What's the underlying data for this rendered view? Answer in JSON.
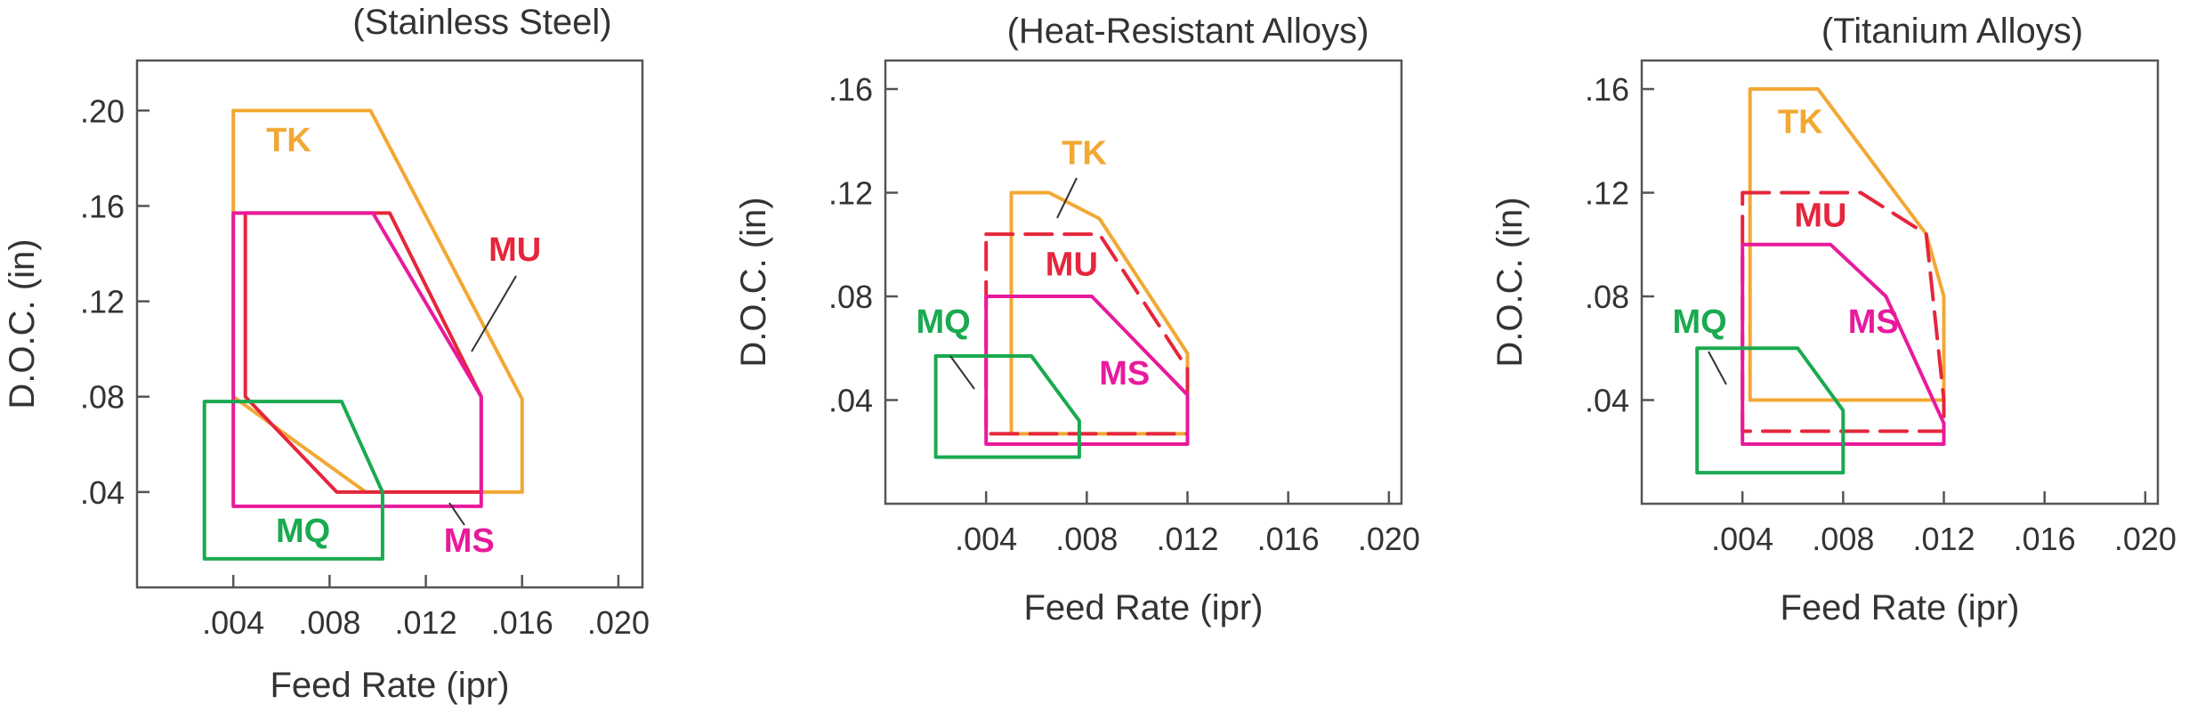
{
  "chart_data": [
    {
      "type": "area",
      "title": "(Stainless Steel)",
      "xlabel": "Feed Rate (ipr)",
      "ylabel": "D.O.C. (in)",
      "xlim": [
        0,
        0.021
      ],
      "ylim": [
        0,
        0.221
      ],
      "x_ticks": [
        0.004,
        0.008,
        0.012,
        0.016,
        0.02
      ],
      "x_tick_labels": [
        ".004",
        ".008",
        ".012",
        ".016",
        ".020"
      ],
      "y_ticks": [
        0.04,
        0.08,
        0.12,
        0.16,
        0.2
      ],
      "y_tick_labels": [
        ".04",
        ".08",
        ".12",
        ".16",
        ".20"
      ],
      "series": [
        {
          "name": "TK",
          "color": "#f2a833",
          "dash": "solid",
          "points": [
            [
              0.004,
              0.2
            ],
            [
              0.0097,
              0.2
            ],
            [
              0.016,
              0.079
            ],
            [
              0.016,
              0.04
            ],
            [
              0.0095,
              0.04
            ],
            [
              0.004,
              0.08
            ]
          ]
        },
        {
          "name": "MU",
          "color": "#e5263b",
          "dash": "solid",
          "points": [
            [
              0.0045,
              0.157
            ],
            [
              0.0105,
              0.157
            ],
            [
              0.0143,
              0.08
            ],
            [
              0.0143,
              0.04
            ],
            [
              0.0083,
              0.04
            ],
            [
              0.0045,
              0.08
            ]
          ]
        },
        {
          "name": "MS",
          "color": "#e81a9c",
          "dash": "solid",
          "points": [
            [
              0.004,
              0.157
            ],
            [
              0.0098,
              0.157
            ],
            [
              0.0143,
              0.08
            ],
            [
              0.0143,
              0.034
            ],
            [
              0.004,
              0.034
            ]
          ]
        },
        {
          "name": "MQ",
          "color": "#1aaa4f",
          "dash": "solid",
          "points": [
            [
              0.0028,
              0.078
            ],
            [
              0.0085,
              0.078
            ],
            [
              0.0102,
              0.04
            ],
            [
              0.0102,
              0.012
            ],
            [
              0.0028,
              0.012
            ]
          ]
        }
      ],
      "labels": [
        {
          "text": "TK",
          "x": 0.0063,
          "y": 0.183,
          "color": "#f2a833"
        },
        {
          "text": "MU",
          "x": 0.0157,
          "y": 0.137,
          "color": "#e5263b"
        },
        {
          "text": "MS",
          "x": 0.0138,
          "y": 0.015,
          "color": "#e81a9c"
        },
        {
          "text": "MQ",
          "x": 0.0069,
          "y": 0.019,
          "color": "#1aaa4f"
        }
      ]
    },
    {
      "type": "area",
      "title": "(Heat-Resistant Alloys)",
      "xlabel": "Feed Rate (ipr)",
      "ylabel": "D.O.C. (in)",
      "xlim": [
        0,
        0.0205
      ],
      "ylim": [
        0,
        0.171
      ],
      "x_ticks": [
        0.004,
        0.008,
        0.012,
        0.016,
        0.02
      ],
      "x_tick_labels": [
        ".004",
        ".008",
        ".012",
        ".016",
        ".020"
      ],
      "y_ticks": [
        0.04,
        0.08,
        0.12,
        0.16
      ],
      "y_tick_labels": [
        ".04",
        ".08",
        ".12",
        ".16"
      ],
      "series": [
        {
          "name": "TK",
          "color": "#f2a833",
          "dash": "solid",
          "points": [
            [
              0.005,
              0.12
            ],
            [
              0.0065,
              0.12
            ],
            [
              0.0085,
              0.11
            ],
            [
              0.012,
              0.058
            ],
            [
              0.012,
              0.027
            ],
            [
              0.005,
              0.027
            ]
          ]
        },
        {
          "name": "MU",
          "color": "#e5263b",
          "dash": "dashed",
          "points": [
            [
              0.004,
              0.104
            ],
            [
              0.0085,
              0.104
            ],
            [
              0.012,
              0.052
            ],
            [
              0.012,
              0.027
            ],
            [
              0.004,
              0.027
            ]
          ]
        },
        {
          "name": "MS",
          "color": "#e81a9c",
          "dash": "solid",
          "points": [
            [
              0.004,
              0.08
            ],
            [
              0.0082,
              0.08
            ],
            [
              0.012,
              0.042
            ],
            [
              0.012,
              0.023
            ],
            [
              0.004,
              0.023
            ]
          ]
        },
        {
          "name": "MQ",
          "color": "#1aaa4f",
          "dash": "solid",
          "points": [
            [
              0.002,
              0.057
            ],
            [
              0.0058,
              0.057
            ],
            [
              0.0077,
              0.032
            ],
            [
              0.0077,
              0.018
            ],
            [
              0.002,
              0.018
            ]
          ]
        }
      ],
      "labels": [
        {
          "text": "TK",
          "x": 0.0079,
          "y": 0.131,
          "color": "#f2a833"
        },
        {
          "text": "MU",
          "x": 0.0074,
          "y": 0.088,
          "color": "#e5263b"
        },
        {
          "text": "MS",
          "x": 0.0095,
          "y": 0.046,
          "color": "#e81a9c"
        },
        {
          "text": "MQ",
          "x": 0.0023,
          "y": 0.066,
          "color": "#1aaa4f"
        }
      ]
    },
    {
      "type": "area",
      "title": "(Titanium Alloys)",
      "xlabel": "Feed Rate (ipr)",
      "ylabel": "D.O.C. (in)",
      "xlim": [
        0,
        0.0205
      ],
      "ylim": [
        0,
        0.171
      ],
      "x_ticks": [
        0.004,
        0.008,
        0.012,
        0.016,
        0.02
      ],
      "x_tick_labels": [
        ".004",
        ".008",
        ".012",
        ".016",
        ".020"
      ],
      "y_ticks": [
        0.04,
        0.08,
        0.12,
        0.16
      ],
      "y_tick_labels": [
        ".04",
        ".08",
        ".12",
        ".16"
      ],
      "series": [
        {
          "name": "TK",
          "color": "#f2a833",
          "dash": "solid",
          "points": [
            [
              0.0043,
              0.16
            ],
            [
              0.007,
              0.16
            ],
            [
              0.0113,
              0.104
            ],
            [
              0.012,
              0.08
            ],
            [
              0.012,
              0.04
            ],
            [
              0.0043,
              0.04
            ]
          ]
        },
        {
          "name": "MU",
          "color": "#e5263b",
          "dash": "dashed",
          "points": [
            [
              0.004,
              0.12
            ],
            [
              0.0087,
              0.12
            ],
            [
              0.0113,
              0.104
            ],
            [
              0.012,
              0.04
            ],
            [
              0.012,
              0.028
            ],
            [
              0.004,
              0.028
            ]
          ]
        },
        {
          "name": "MS",
          "color": "#e81a9c",
          "dash": "solid",
          "points": [
            [
              0.004,
              0.1
            ],
            [
              0.0075,
              0.1
            ],
            [
              0.0097,
              0.08
            ],
            [
              0.012,
              0.031
            ],
            [
              0.012,
              0.023
            ],
            [
              0.004,
              0.023
            ]
          ]
        },
        {
          "name": "MQ",
          "color": "#1aaa4f",
          "dash": "solid",
          "points": [
            [
              0.0022,
              0.06
            ],
            [
              0.0062,
              0.06
            ],
            [
              0.008,
              0.036
            ],
            [
              0.008,
              0.012
            ],
            [
              0.0022,
              0.012
            ]
          ]
        }
      ],
      "labels": [
        {
          "text": "TK",
          "x": 0.0063,
          "y": 0.143,
          "color": "#f2a833"
        },
        {
          "text": "MU",
          "x": 0.0071,
          "y": 0.107,
          "color": "#e5263b"
        },
        {
          "text": "MS",
          "x": 0.0092,
          "y": 0.066,
          "color": "#e81a9c"
        },
        {
          "text": "MQ",
          "x": 0.0023,
          "y": 0.066,
          "color": "#1aaa4f"
        }
      ]
    }
  ]
}
